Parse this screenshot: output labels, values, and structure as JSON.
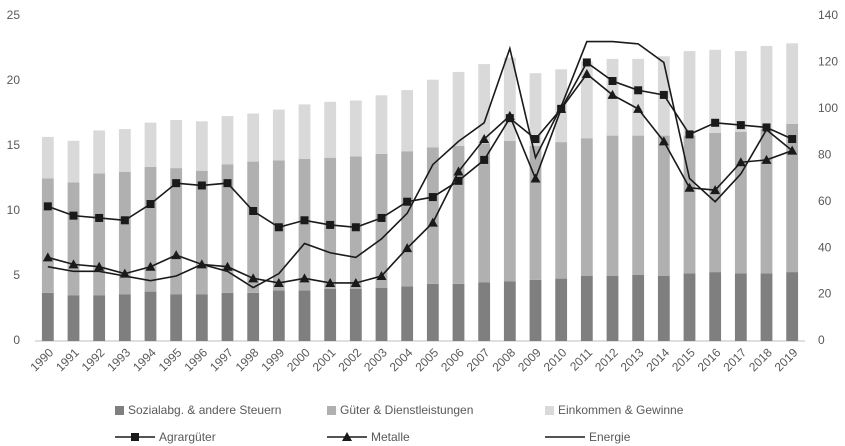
{
  "chart_data": {
    "type": "bar",
    "categories": [
      "1990",
      "1991",
      "1992",
      "1993",
      "1994",
      "1995",
      "1996",
      "1997",
      "1998",
      "1999",
      "2000",
      "2001",
      "2002",
      "2003",
      "2004",
      "2005",
      "2006",
      "2007",
      "2008",
      "2009",
      "2010",
      "2011",
      "2012",
      "2013",
      "2014",
      "2015",
      "2016",
      "2017",
      "2018",
      "2019"
    ],
    "series": [
      {
        "name": "Sozialabg. & andere Steuern",
        "type": "bar",
        "color": "#7f7f7f",
        "values": [
          3.7,
          3.5,
          3.5,
          3.6,
          3.8,
          3.6,
          3.6,
          3.7,
          3.7,
          3.9,
          3.9,
          4.0,
          4.0,
          4.1,
          4.2,
          4.4,
          4.4,
          4.5,
          4.6,
          4.7,
          4.8,
          5.0,
          5.0,
          5.1,
          5.0,
          5.2,
          5.3,
          5.2,
          5.2,
          5.3
        ]
      },
      {
        "name": "Güter & Dienstleistungen",
        "type": "bar",
        "color": "#b0b0b0",
        "values": [
          8.8,
          8.7,
          9.4,
          9.4,
          9.6,
          9.7,
          9.5,
          9.9,
          10.1,
          10.0,
          10.1,
          10.1,
          10.2,
          10.3,
          10.4,
          10.5,
          10.6,
          10.7,
          10.8,
          10.3,
          10.5,
          10.6,
          10.8,
          10.7,
          10.8,
          10.6,
          10.7,
          10.9,
          11.1,
          11.4
        ]
      },
      {
        "name": "Einkommen & Gewinne",
        "type": "bar",
        "color": "#d9d9d9",
        "values": [
          3.2,
          3.2,
          3.3,
          3.3,
          3.4,
          3.7,
          3.8,
          3.7,
          3.7,
          3.9,
          4.2,
          4.3,
          4.3,
          4.5,
          4.7,
          5.2,
          5.7,
          6.1,
          6.4,
          5.6,
          5.6,
          5.9,
          5.9,
          5.9,
          6.1,
          6.5,
          6.4,
          6.2,
          6.4,
          6.2
        ]
      },
      {
        "name": "Agrargüter",
        "type": "line",
        "axis": "y2",
        "color": "#1a1a1a",
        "marker": "square",
        "values": [
          58,
          54,
          53,
          52,
          59,
          68,
          67,
          68,
          56,
          49,
          52,
          50,
          49,
          53,
          60,
          62,
          69,
          78,
          96,
          87,
          100,
          120,
          112,
          108,
          106,
          89,
          94,
          93,
          92,
          87
        ]
      },
      {
        "name": "Metalle",
        "type": "line",
        "axis": "y2",
        "color": "#1a1a1a",
        "marker": "triangle",
        "values": [
          36,
          33,
          32,
          29,
          32,
          37,
          33,
          32,
          27,
          25,
          27,
          25,
          25,
          28,
          40,
          51,
          73,
          87,
          97,
          70,
          100,
          115,
          106,
          100,
          86,
          66,
          65,
          77,
          78,
          82
        ]
      },
      {
        "name": "Energie",
        "type": "line",
        "axis": "y2",
        "color": "#1a1a1a",
        "values": [
          32,
          30,
          30,
          28,
          26,
          28,
          33,
          30,
          23,
          29,
          42,
          38,
          36,
          44,
          55,
          76,
          86,
          94,
          126,
          79,
          101,
          129,
          129,
          128,
          120,
          70,
          60,
          72,
          91,
          82
        ]
      }
    ],
    "ylim": [
      0,
      25
    ],
    "yticks": [
      0,
      5,
      10,
      15,
      20,
      25
    ],
    "y2lim": [
      0,
      140
    ],
    "y2ticks": [
      0,
      20,
      40,
      60,
      80,
      100,
      120,
      140
    ],
    "grid": false
  }
}
